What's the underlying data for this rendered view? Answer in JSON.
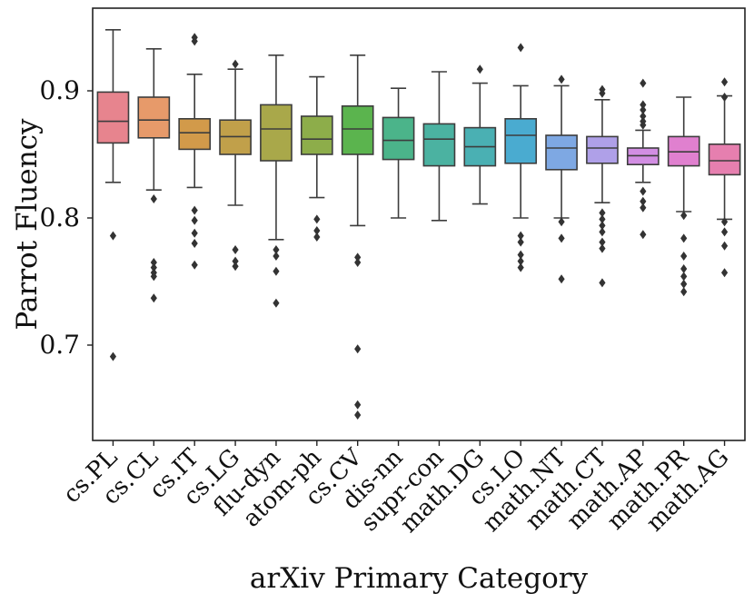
{
  "chart_data": {
    "type": "boxplot",
    "title": "",
    "xlabel": "arXiv Primary Category",
    "ylabel": "Parrot Fluency",
    "ylim": [
      0.625,
      0.965
    ],
    "yticks": [
      0.7,
      0.8,
      0.9
    ],
    "ytick_labels": [
      "0.7",
      "0.8",
      "0.9"
    ],
    "grid": false,
    "categories": [
      "cs.PL",
      "cs.CL",
      "cs.IT",
      "cs.LG",
      "flu-dyn",
      "atom-ph",
      "cs.CV",
      "dis-nn",
      "supr-con",
      "math.DG",
      "cs.LO",
      "math.NT",
      "math.CT",
      "math.AP",
      "math.PR",
      "math.AG"
    ],
    "colors": [
      "#e7848e",
      "#e79a6a",
      "#d29a4a",
      "#c1a04a",
      "#a9a84a",
      "#8dad4a",
      "#5bb44e",
      "#4bb48a",
      "#4bb2a1",
      "#4ab0b3",
      "#4aabd0",
      "#7ea8e3",
      "#afa0e8",
      "#d28ee3",
      "#e080cf",
      "#e67faf"
    ],
    "boxes": [
      {
        "name": "cs.PL",
        "whisker_low": 0.828,
        "q1": 0.859,
        "median": 0.876,
        "q3": 0.899,
        "whisker_high": 0.948,
        "outliers": [
          0.786,
          0.691
        ]
      },
      {
        "name": "cs.CL",
        "whisker_low": 0.822,
        "q1": 0.863,
        "median": 0.877,
        "q3": 0.895,
        "whisker_high": 0.933,
        "outliers": [
          0.815,
          0.765,
          0.761,
          0.757,
          0.754,
          0.737
        ]
      },
      {
        "name": "cs.IT",
        "whisker_low": 0.824,
        "q1": 0.854,
        "median": 0.867,
        "q3": 0.878,
        "whisker_high": 0.913,
        "outliers": [
          0.942,
          0.939,
          0.806,
          0.798,
          0.788,
          0.78,
          0.763
        ]
      },
      {
        "name": "cs.LG",
        "whisker_low": 0.81,
        "q1": 0.85,
        "median": 0.864,
        "q3": 0.877,
        "whisker_high": 0.917,
        "outliers": [
          0.921,
          0.775,
          0.766,
          0.762
        ]
      },
      {
        "name": "flu-dyn",
        "whisker_low": 0.783,
        "q1": 0.845,
        "median": 0.87,
        "q3": 0.889,
        "whisker_high": 0.928,
        "outliers": [
          0.775,
          0.77,
          0.758,
          0.733
        ]
      },
      {
        "name": "atom-ph",
        "whisker_low": 0.816,
        "q1": 0.85,
        "median": 0.862,
        "q3": 0.88,
        "whisker_high": 0.911,
        "outliers": [
          0.799,
          0.79,
          0.785
        ]
      },
      {
        "name": "cs.CV",
        "whisker_low": 0.794,
        "q1": 0.85,
        "median": 0.87,
        "q3": 0.888,
        "whisker_high": 0.928,
        "outliers": [
          0.769,
          0.765,
          0.697,
          0.653,
          0.645
        ]
      },
      {
        "name": "dis-nn",
        "whisker_low": 0.8,
        "q1": 0.846,
        "median": 0.861,
        "q3": 0.879,
        "whisker_high": 0.902,
        "outliers": []
      },
      {
        "name": "supr-con",
        "whisker_low": 0.798,
        "q1": 0.841,
        "median": 0.862,
        "q3": 0.874,
        "whisker_high": 0.915,
        "outliers": []
      },
      {
        "name": "math.DG",
        "whisker_low": 0.811,
        "q1": 0.841,
        "median": 0.856,
        "q3": 0.871,
        "whisker_high": 0.906,
        "outliers": [
          0.917
        ]
      },
      {
        "name": "cs.LO",
        "whisker_low": 0.8,
        "q1": 0.843,
        "median": 0.865,
        "q3": 0.878,
        "whisker_high": 0.904,
        "outliers": [
          0.934,
          0.786,
          0.781,
          0.771,
          0.766,
          0.761
        ]
      },
      {
        "name": "math.NT",
        "whisker_low": 0.8,
        "q1": 0.838,
        "median": 0.855,
        "q3": 0.865,
        "whisker_high": 0.904,
        "outliers": [
          0.909,
          0.797,
          0.784,
          0.752
        ]
      },
      {
        "name": "math.CT",
        "whisker_low": 0.812,
        "q1": 0.843,
        "median": 0.855,
        "q3": 0.864,
        "whisker_high": 0.893,
        "outliers": [
          0.901,
          0.898,
          0.804,
          0.799,
          0.794,
          0.789,
          0.781,
          0.776,
          0.749
        ]
      },
      {
        "name": "math.AP",
        "whisker_low": 0.828,
        "q1": 0.842,
        "median": 0.849,
        "q3": 0.855,
        "whisker_high": 0.869,
        "outliers": [
          0.906,
          0.889,
          0.885,
          0.88,
          0.876,
          0.873,
          0.821,
          0.813,
          0.808,
          0.787
        ]
      },
      {
        "name": "math.PR",
        "whisker_low": 0.805,
        "q1": 0.841,
        "median": 0.852,
        "q3": 0.864,
        "whisker_high": 0.895,
        "outliers": [
          0.802,
          0.784,
          0.77,
          0.76,
          0.754,
          0.748,
          0.742
        ]
      },
      {
        "name": "math.AG",
        "whisker_low": 0.799,
        "q1": 0.834,
        "median": 0.845,
        "q3": 0.858,
        "whisker_high": 0.896,
        "outliers": [
          0.907,
          0.895,
          0.797,
          0.789,
          0.778,
          0.757
        ]
      }
    ]
  }
}
